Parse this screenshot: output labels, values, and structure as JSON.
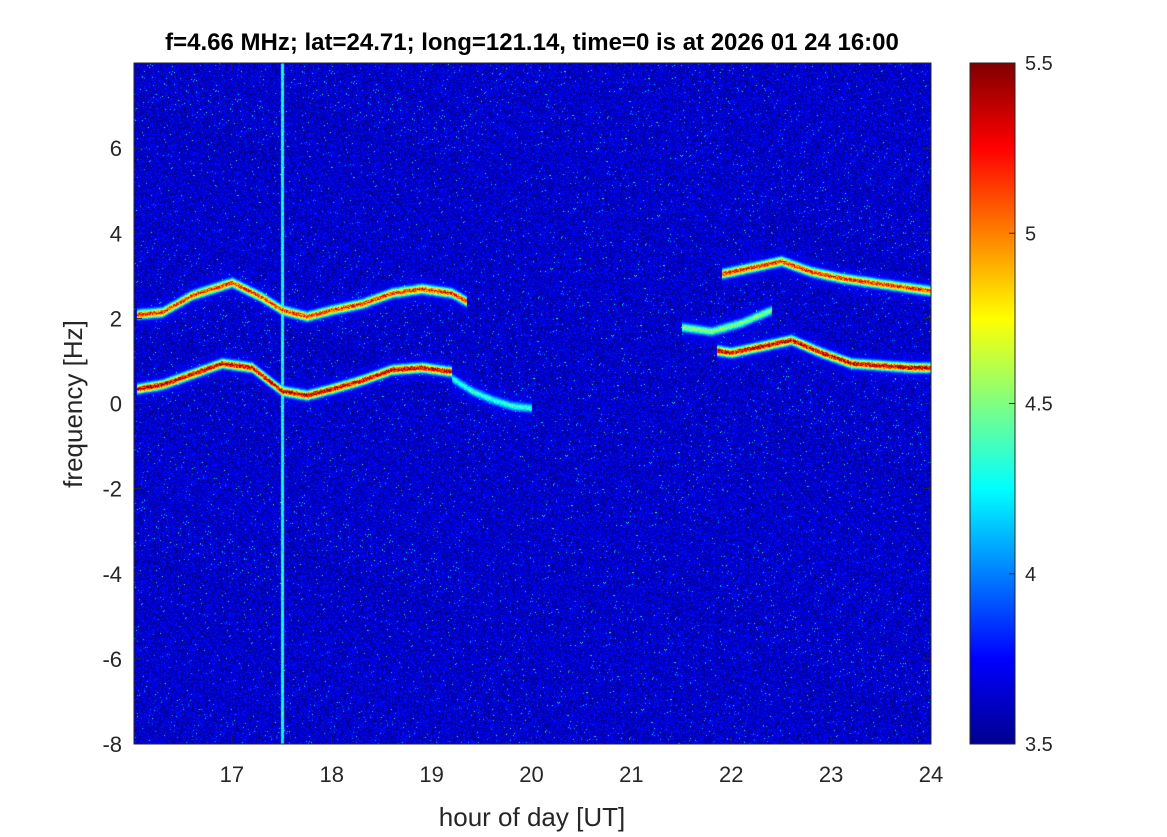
{
  "chart_data": {
    "type": "heatmap",
    "title": "f=4.66 MHz;  lat=24.71; long=121.14, time=0 is at 2026 01 24 16:00",
    "xlabel": "hour of day [UT]",
    "ylabel": "frequency [Hz]",
    "xlim": [
      16.02,
      24
    ],
    "ylim": [
      -8,
      8
    ],
    "xticks": [
      "17",
      "18",
      "19",
      "20",
      "21",
      "22",
      "23",
      "24"
    ],
    "yticks": [
      "-8",
      "-6",
      "-4",
      "-2",
      "0",
      "2",
      "4",
      "6"
    ],
    "colorbar": {
      "colormap": "jet",
      "range": [
        3.5,
        5.5
      ],
      "ticks": [
        "3.5",
        "4",
        "4.5",
        "5",
        "5.5"
      ]
    },
    "background_level": 3.65,
    "grid": false,
    "traces": [
      {
        "x": [
          16.05,
          16.3,
          16.6,
          17.0,
          17.3,
          17.5,
          17.75,
          18.0,
          18.3,
          18.6,
          18.9,
          19.2,
          19.35
        ],
        "y": [
          2.1,
          2.15,
          2.55,
          2.85,
          2.5,
          2.2,
          2.05,
          2.2,
          2.35,
          2.6,
          2.7,
          2.6,
          2.4
        ],
        "level": 5.3
      },
      {
        "x": [
          16.05,
          16.3,
          16.6,
          16.9,
          17.2,
          17.5,
          17.75,
          18.0,
          18.3,
          18.6,
          18.9,
          19.2
        ],
        "y": [
          0.35,
          0.45,
          0.7,
          0.95,
          0.85,
          0.3,
          0.2,
          0.35,
          0.55,
          0.8,
          0.85,
          0.75
        ],
        "level": 5.5
      },
      {
        "x": [
          19.2,
          19.4,
          19.6,
          19.8,
          20.0
        ],
        "y": [
          0.6,
          0.3,
          0.1,
          -0.05,
          -0.1
        ],
        "level": 4.4
      },
      {
        "x": [
          21.9,
          22.2,
          22.5,
          22.8,
          23.1,
          23.4,
          23.7,
          24.0
        ],
        "y": [
          3.05,
          3.2,
          3.35,
          3.1,
          2.95,
          2.85,
          2.75,
          2.65
        ],
        "level": 5.3
      },
      {
        "x": [
          21.85,
          22.0,
          22.3,
          22.6,
          22.9,
          23.2,
          23.5,
          23.8,
          24.0
        ],
        "y": [
          1.25,
          1.2,
          1.35,
          1.5,
          1.2,
          0.95,
          0.9,
          0.85,
          0.85
        ],
        "level": 5.5
      },
      {
        "x": [
          21.5,
          21.8,
          22.1,
          22.4
        ],
        "y": [
          1.8,
          1.7,
          1.9,
          2.2
        ],
        "level": 4.6
      }
    ],
    "vertical_streak": {
      "x": 17.5,
      "level": 4.3
    }
  }
}
